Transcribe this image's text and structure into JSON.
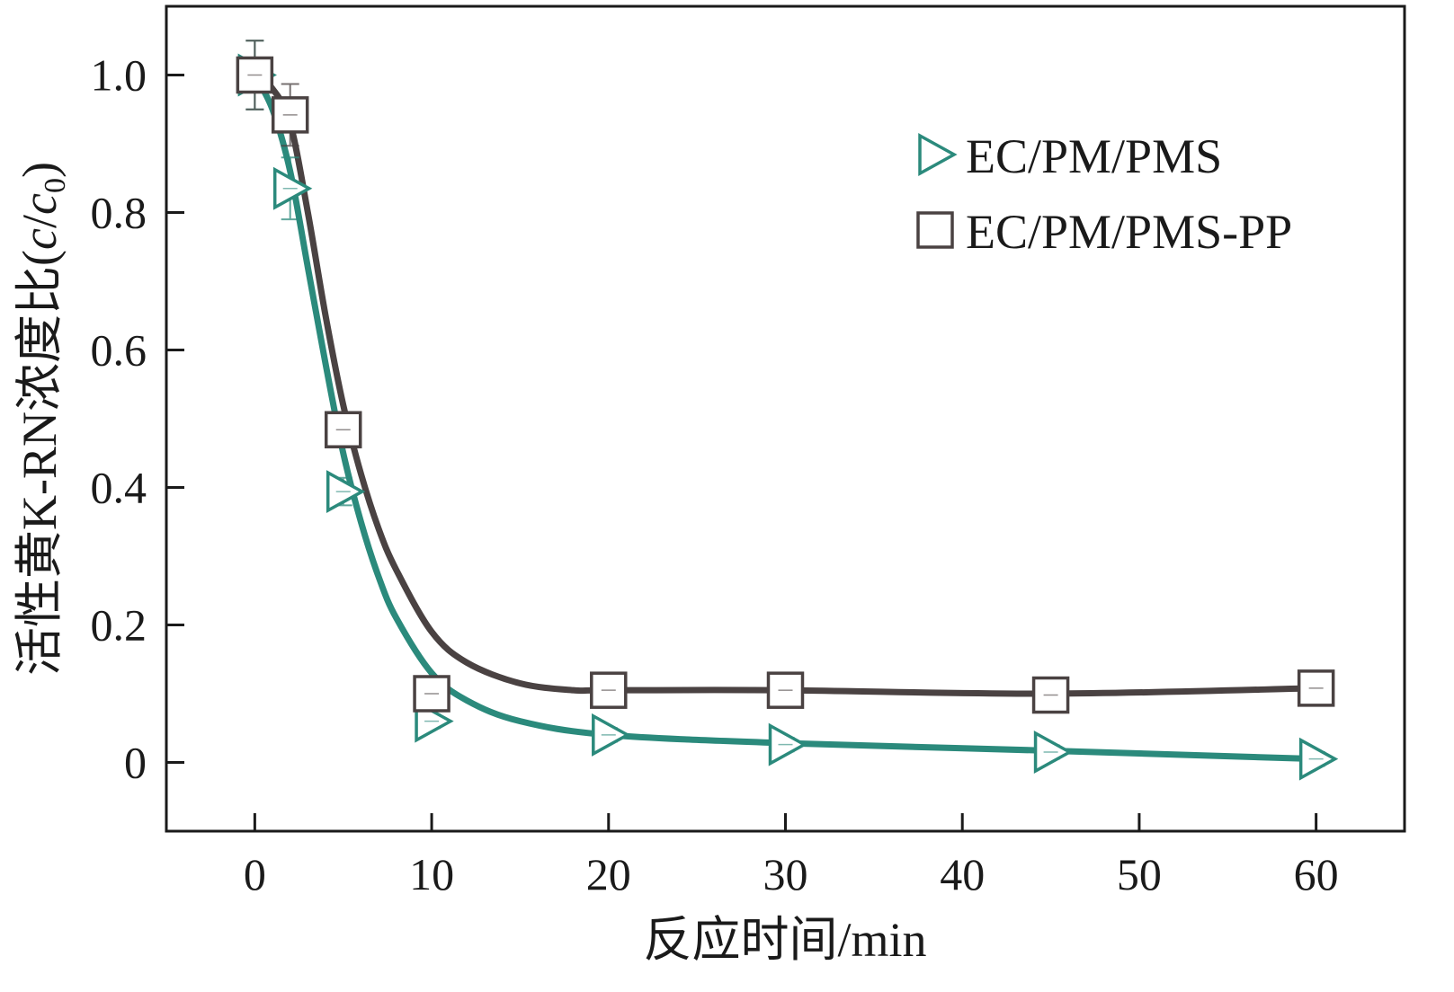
{
  "chart_data": {
    "type": "line",
    "title": "",
    "xlabel": "反应时间/min",
    "ylabel_prefix": "活性黄K-RN浓度比(",
    "ylabel_var": "c",
    "ylabel_slash": "/",
    "ylabel_var0": "c",
    "ylabel_sub": "0",
    "ylabel_suffix": ")",
    "xlim": [
      -5,
      65
    ],
    "ylim": [
      -0.1,
      1.1
    ],
    "xticks": [
      0,
      10,
      20,
      30,
      40,
      50,
      60
    ],
    "xtick_labels": [
      "0",
      "10",
      "20",
      "30",
      "40",
      "50",
      "60"
    ],
    "yticks": [
      0,
      0.2,
      0.4,
      0.6,
      0.8,
      1.0
    ],
    "ytick_labels": [
      "0",
      "0.2",
      "0.4",
      "0.6",
      "0.8",
      "1.0"
    ],
    "grid": false,
    "legend_position": "top-right",
    "series": [
      {
        "name": "EC/PM/PMS",
        "marker": "triangle-right",
        "color": "#2b8a7c",
        "x": [
          0,
          2,
          5,
          10,
          20,
          30,
          45,
          60
        ],
        "y": [
          1.0,
          0.835,
          0.394,
          0.06,
          0.04,
          0.026,
          0.015,
          0.005
        ],
        "error": [
          0.05,
          0.045,
          0.02,
          0.01,
          0.01,
          0.01,
          0.01,
          0.01
        ],
        "fit_x": [
          0,
          1,
          2,
          3,
          4,
          5,
          6,
          7,
          8,
          10,
          12,
          15,
          20,
          30,
          45,
          60
        ],
        "fit_y": [
          1.0,
          0.95,
          0.86,
          0.72,
          0.58,
          0.45,
          0.35,
          0.27,
          0.21,
          0.13,
          0.09,
          0.06,
          0.04,
          0.028,
          0.017,
          0.005
        ]
      },
      {
        "name": "EC/PM/PMS-PP",
        "marker": "square",
        "color": "#4a4242",
        "x": [
          0,
          2,
          5,
          10,
          20,
          30,
          45,
          60
        ],
        "y": [
          1.0,
          0.942,
          0.484,
          0.1,
          0.105,
          0.105,
          0.098,
          0.108
        ],
        "error": [
          0.05,
          0.045,
          0.02,
          0.01,
          0.01,
          0.01,
          0.01,
          0.01
        ],
        "fit_x": [
          0,
          1,
          2,
          3,
          4,
          5,
          6,
          7,
          8,
          10,
          12,
          15,
          18,
          20,
          30,
          45,
          60
        ],
        "fit_y": [
          1.0,
          0.98,
          0.93,
          0.8,
          0.65,
          0.52,
          0.42,
          0.34,
          0.28,
          0.19,
          0.145,
          0.115,
          0.105,
          0.105,
          0.105,
          0.1,
          0.108
        ]
      }
    ]
  }
}
